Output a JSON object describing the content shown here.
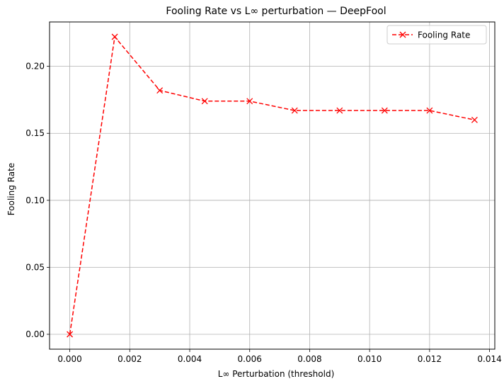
{
  "chart_data": {
    "type": "line",
    "title": "Fooling Rate vs L∞ perturbation — DeepFool",
    "xlabel": "L∞ Perturbation (threshold)",
    "ylabel": "Fooling Rate",
    "xlim": [
      -0.000675,
      0.014175
    ],
    "ylim": [
      -0.0111,
      0.2331
    ],
    "grid": true,
    "legend_position": "top-right",
    "x_ticks": [
      0.0,
      0.002,
      0.004,
      0.006,
      0.008,
      0.01,
      0.012,
      0.014
    ],
    "x_tick_labels": [
      "0.000",
      "0.002",
      "0.004",
      "0.006",
      "0.008",
      "0.010",
      "0.012",
      "0.014"
    ],
    "y_ticks": [
      0.0,
      0.05,
      0.1,
      0.15,
      0.2
    ],
    "y_tick_labels": [
      "0.00",
      "0.05",
      "0.10",
      "0.15",
      "0.20"
    ],
    "series": [
      {
        "name": "Fooling Rate",
        "color": "#ff0000",
        "line_style": "dashed",
        "marker": "x",
        "x": [
          0.0,
          0.0015,
          0.003,
          0.0045,
          0.006,
          0.0075,
          0.009,
          0.0105,
          0.012,
          0.0135
        ],
        "y": [
          0.0,
          0.222,
          0.182,
          0.174,
          0.174,
          0.167,
          0.167,
          0.167,
          0.167,
          0.16
        ]
      }
    ]
  }
}
